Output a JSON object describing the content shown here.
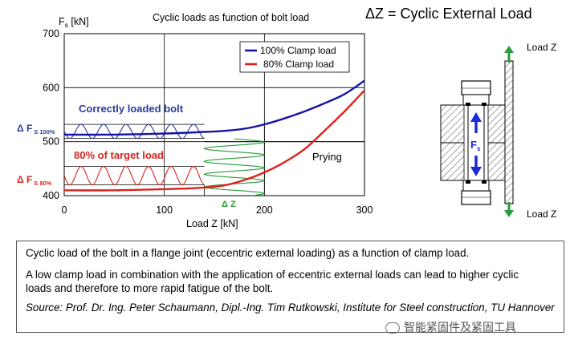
{
  "chart_data": {
    "type": "line",
    "title": "Cyclic loads as function of bolt load",
    "header_title": "ΔZ = Cyclic External Load",
    "xlabel": "Load Z [kN]",
    "ylabel": "F",
    "ylabel_sub": "s",
    "ylabel_unit": " [kN]",
    "xlim": [
      0,
      300
    ],
    "ylim": [
      400,
      700
    ],
    "xticks": [
      "0",
      "100",
      "200",
      "300"
    ],
    "yticks": [
      "400",
      "500",
      "600",
      "700"
    ],
    "xtick_values": [
      0,
      100,
      200,
      300
    ],
    "ytick_values": [
      400,
      500,
      600,
      700
    ],
    "grid": true,
    "legend_position": "top-right",
    "series": [
      {
        "name": "100% Clamp load",
        "color": "#1414a8",
        "x": [
          0,
          50,
          100,
          140,
          160,
          180,
          200,
          220,
          240,
          260,
          280,
          300
        ],
        "y": [
          513,
          513,
          515,
          518,
          520,
          524,
          532,
          543,
          556,
          571,
          588,
          613
        ]
      },
      {
        "name": "80% Clamp load",
        "color": "#e0201c",
        "x": [
          0,
          50,
          100,
          140,
          160,
          180,
          200,
          220,
          240,
          260,
          280,
          300
        ],
        "y": [
          410,
          410,
          412,
          415,
          419,
          429,
          443,
          462,
          486,
          520,
          556,
          595
        ]
      }
    ],
    "annotations": {
      "correct_label": "Correctly loaded bolt",
      "target_label": "80% of target load",
      "prying_label": "Prying",
      "delta_fs_100": "Δ F",
      "delta_fs_100_sub": "S 100%",
      "delta_fs_80": "Δ F",
      "delta_fs_80_sub": "S 80%",
      "delta_z": "Δ Z",
      "prying_level": 500,
      "upper_band": [
        506,
        532
      ],
      "lower_band": [
        420,
        454
      ],
      "z_band": [
        140,
        200
      ]
    },
    "diagram": {
      "load_top": "Load Z",
      "load_bottom": "Load Z",
      "fs_label": "F",
      "fs_sub": "s"
    }
  },
  "caption": {
    "line1": "Cyclic load of the bolt in a flange joint (eccentric external loading) as a function of clamp load.",
    "line2": "A low clamp load in combination with the application of eccentric external loads can lead to higher cyclic loads and therefore to more rapid fatigue of the bolt.",
    "line3": "Source: Prof. Dr. Ing. Peter Schaumann, Dipl.-Ing. Tim Rutkowski, Institute for Steel construction, TU Hannover"
  },
  "watermark": "智能紧固件及紧固工具",
  "colors": {
    "blue": "#1414a8",
    "red": "#e0201c",
    "green": "#2a9a3c",
    "annot_blue": "#2b3a9e",
    "annot_red": "#d8261f"
  }
}
